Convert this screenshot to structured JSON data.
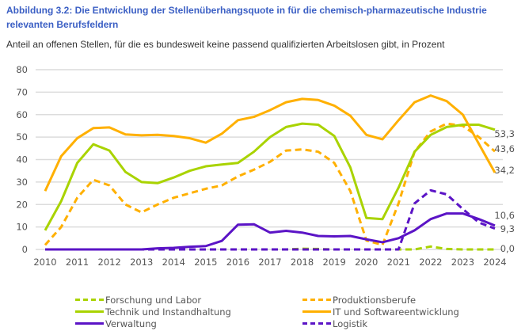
{
  "title": "Abbildung 3.2: Die Entwicklung der Stellenüberhangsquote in für die chemisch-pharmazeutische Industrie relevanten Berufsfeldern",
  "subtitle": "Anteil an offenen Stellen, für die es bundesweit keine passend qualifizierten Arbeitslosen gibt, in Prozent",
  "chart_data": {
    "type": "line",
    "title": "Abbildung 3.2: Die Entwicklung der Stellenüberhangsquote in für die chemisch-pharmazeutische Industrie relevanten Berufsfeldern",
    "xlabel": "",
    "ylabel": "Prozent",
    "ylim": [
      0,
      80
    ],
    "xlim": [
      2010,
      2024
    ],
    "yticks": [
      "0",
      "10",
      "20",
      "30",
      "40",
      "50",
      "60",
      "70",
      "80"
    ],
    "xticks": [
      "2010",
      "2011",
      "2012",
      "2013",
      "2014",
      "2015",
      "2016",
      "2017",
      "2018",
      "2019",
      "2020",
      "2021",
      "2022",
      "2023",
      "2024"
    ],
    "grid": true,
    "legend_position": "bottom",
    "x": [
      2010,
      2010.5,
      2011,
      2011.5,
      2012,
      2012.5,
      2013,
      2013.5,
      2014,
      2014.5,
      2015,
      2015.5,
      2016,
      2016.5,
      2017,
      2017.5,
      2018,
      2018.5,
      2019,
      2019.5,
      2020,
      2020.5,
      2021,
      2021.5,
      2022,
      2022.5,
      2023,
      2023.5,
      2024
    ],
    "series": [
      {
        "name": "Forschung und Labor",
        "color": "#a9d300",
        "dashed": true,
        "end_label": "0,0",
        "values": [
          0,
          0,
          0,
          0,
          0,
          0,
          0,
          0,
          0,
          0,
          0,
          0,
          0,
          0,
          0,
          0,
          0.3,
          0.2,
          0,
          0,
          0,
          0,
          0,
          0,
          1.3,
          0.2,
          0,
          0,
          0
        ]
      },
      {
        "name": "Produktionsberufe",
        "color": "#ffb000",
        "dashed": true,
        "end_label": "43,6",
        "values": [
          2,
          10,
          23,
          31,
          28.5,
          20,
          16.5,
          20,
          23,
          25,
          27,
          28.5,
          32.5,
          35.5,
          39,
          44,
          44.5,
          43.5,
          38.5,
          26,
          4,
          2,
          20.5,
          43.5,
          52.5,
          56,
          55,
          50,
          43.6
        ]
      },
      {
        "name": "Technik und Instandhaltung",
        "color": "#a9d300",
        "dashed": false,
        "end_label": "53,3",
        "values": [
          8.5,
          21.5,
          38.5,
          46.8,
          44,
          34.5,
          30,
          29.5,
          32,
          35,
          37,
          37.8,
          38.5,
          43.5,
          50,
          54.5,
          56,
          55.5,
          50.5,
          36.5,
          14,
          13.5,
          27.5,
          43.5,
          51,
          54.5,
          55.5,
          55.5,
          53.3
        ]
      },
      {
        "name": "IT und Softwareentwicklung",
        "color": "#ffb000",
        "dashed": false,
        "end_label": "34,2",
        "values": [
          26,
          41.5,
          49.5,
          54,
          54.3,
          51.2,
          50.8,
          51,
          50.5,
          49.5,
          47.5,
          51.5,
          57.5,
          59,
          62,
          65.5,
          67,
          66.5,
          64,
          59.5,
          51,
          49,
          57.5,
          65.5,
          68.5,
          66,
          60,
          47,
          34.2
        ]
      },
      {
        "name": "Verwaltung",
        "color": "#5b14c6",
        "dashed": false,
        "end_label": "10,6",
        "values": [
          0,
          0,
          0,
          0,
          0,
          0,
          0,
          0.5,
          0.7,
          1.2,
          1.5,
          3.8,
          11,
          11.2,
          7.5,
          8.3,
          7.5,
          6,
          5.8,
          6,
          4.5,
          3.2,
          5,
          8.5,
          13.5,
          16,
          16,
          13.5,
          10.6
        ]
      },
      {
        "name": "Logistik",
        "color": "#5b14c6",
        "dashed": true,
        "end_label": "9,3",
        "values": [
          0,
          0,
          0,
          0,
          0,
          0,
          0,
          0,
          0,
          0,
          0,
          0,
          0,
          0,
          0,
          0,
          0,
          0,
          0,
          0,
          0,
          0,
          0,
          20.5,
          26.3,
          24.5,
          18,
          12,
          9.3
        ]
      }
    ]
  }
}
